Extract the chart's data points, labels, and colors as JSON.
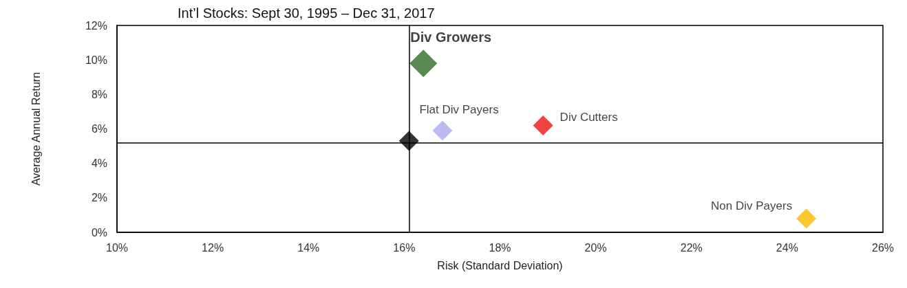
{
  "chart_data": {
    "type": "scatter",
    "title": "Int’l Stocks: Sept 30, 1995 – Dec 31, 2017",
    "xlabel": "Risk (Standard Deviation)",
    "ylabel": "Average Annual Return",
    "series": [
      {
        "name": "Div Growers",
        "color": "#2e6b26",
        "x": [
          16.4
        ],
        "values": [
          9.8
        ]
      },
      {
        "name": "Flat Div Payers",
        "color": "#aaaaee",
        "x": [
          16.8
        ],
        "values": [
          5.9
        ]
      },
      {
        "name": "Div Cutters",
        "color": "#ee1111",
        "x": [
          18.9
        ],
        "values": [
          6.2
        ]
      },
      {
        "color": "#000000",
        "x": [
          16.1
        ],
        "values": [
          5.3
        ]
      },
      {
        "name": "Non Div Payers",
        "color": "#ffb800",
        "x": [
          24.4
        ],
        "values": [
          0.8
        ]
      }
    ],
    "xlim": [
      10,
      26
    ],
    "xticks": [
      {
        "value": 10,
        "label": "10%"
      },
      {
        "value": 12,
        "label": "12%"
      },
      {
        "value": 14,
        "label": "14%"
      },
      {
        "value": 16,
        "label": "16%"
      },
      {
        "value": 18,
        "label": "18%"
      },
      {
        "value": 20,
        "label": "20%"
      },
      {
        "value": 22,
        "label": "22%"
      },
      {
        "value": 24,
        "label": "24%"
      },
      {
        "value": 26,
        "label": "26%"
      }
    ],
    "ylim": [
      0,
      12
    ],
    "yticks": [
      {
        "value": 0,
        "label": "0%"
      },
      {
        "value": 2,
        "label": "2%"
      },
      {
        "value": 4,
        "label": "4%"
      },
      {
        "value": 6,
        "label": "6%"
      },
      {
        "value": 8,
        "label": "8%"
      },
      {
        "value": 10,
        "label": "10%"
      },
      {
        "value": 12,
        "label": "12%"
      }
    ],
    "ref_lines": [
      {
        "axis": "x",
        "value": 16.1,
        "color": "#000000"
      },
      {
        "axis": "y",
        "value": 5.2,
        "color": "#000000"
      }
    ],
    "marker": "diamond",
    "grid": false,
    "legend": false
  }
}
